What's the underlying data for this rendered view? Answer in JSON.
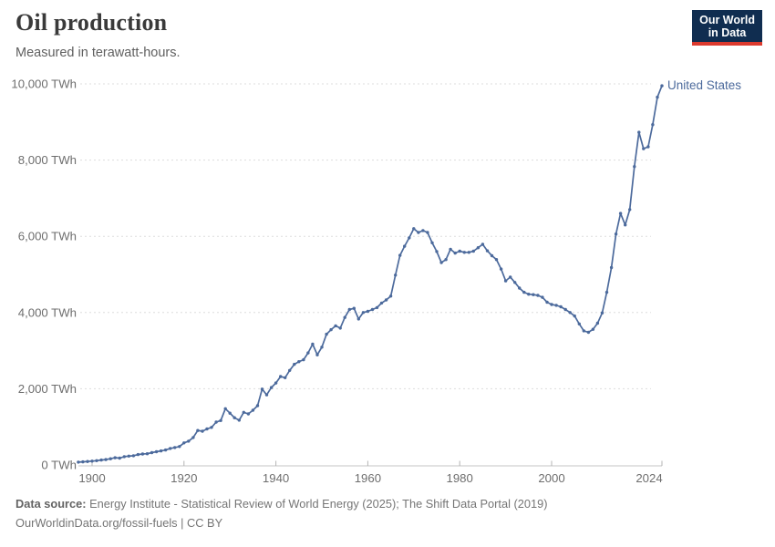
{
  "header": {
    "title": "Oil production",
    "subtitle": "Measured in terawatt-hours."
  },
  "logo": {
    "line1": "Our World",
    "line2": "in Data"
  },
  "colors": {
    "line": "#4c6a9c",
    "logo_bg": "#102d50",
    "logo_red": "#dc3a2e",
    "grid": "#dddddd",
    "axis": "#c4c4c4",
    "axis_text": "#6e6e6e"
  },
  "axis": {
    "y_tick_labels": [
      "10,000 TWh",
      "8,000 TWh",
      "6,000 TWh",
      "4,000 TWh",
      "2,000 TWh",
      "0 TWh"
    ],
    "x_tick_labels": [
      "1900",
      "1920",
      "1940",
      "1960",
      "1980",
      "2000",
      "2024"
    ]
  },
  "entity_label": "United States",
  "footer": {
    "source_label": "Data source:",
    "source_text": " Energy Institute - Statistical Review of World Energy (2025); The Shift Data Portal (2019)",
    "credit": "OurWorldinData.org/fossil-fuels | CC BY"
  },
  "chart_data": {
    "type": "line",
    "title": "Oil production",
    "subtitle": "Measured in terawatt-hours.",
    "xlabel": "",
    "ylabel": "TWh",
    "x_range": [
      1897,
      2024
    ],
    "ylim": [
      0,
      10000
    ],
    "grid": "dashed-horizontal",
    "legend_position": "end-of-line-label",
    "years": [
      1897,
      1898,
      1899,
      1900,
      1901,
      1902,
      1903,
      1904,
      1905,
      1906,
      1907,
      1908,
      1909,
      1910,
      1911,
      1912,
      1913,
      1914,
      1915,
      1916,
      1917,
      1918,
      1919,
      1920,
      1921,
      1922,
      1923,
      1924,
      1925,
      1926,
      1927,
      1928,
      1929,
      1930,
      1931,
      1932,
      1933,
      1934,
      1935,
      1936,
      1937,
      1938,
      1939,
      1940,
      1941,
      1942,
      1943,
      1944,
      1945,
      1946,
      1947,
      1948,
      1949,
      1950,
      1951,
      1952,
      1953,
      1954,
      1955,
      1956,
      1957,
      1958,
      1959,
      1960,
      1961,
      1962,
      1963,
      1964,
      1965,
      1966,
      1967,
      1968,
      1969,
      1970,
      1971,
      1972,
      1973,
      1974,
      1975,
      1976,
      1977,
      1978,
      1979,
      1980,
      1981,
      1982,
      1983,
      1984,
      1985,
      1986,
      1987,
      1988,
      1989,
      1990,
      1991,
      1992,
      1993,
      1994,
      1995,
      1996,
      1997,
      1998,
      1999,
      2000,
      2001,
      2002,
      2003,
      2004,
      2005,
      2006,
      2007,
      2008,
      2009,
      2010,
      2011,
      2012,
      2013,
      2014,
      2015,
      2016,
      2017,
      2018,
      2019,
      2020,
      2021,
      2022,
      2023,
      2024
    ],
    "series": [
      {
        "name": "United States",
        "unit": "TWh",
        "values": [
          75,
          82,
          90,
          100,
          112,
          130,
          142,
          162,
          188,
          180,
          218,
          232,
          242,
          272,
          288,
          295,
          322,
          348,
          368,
          392,
          432,
          458,
          483,
          580,
          625,
          720,
          905,
          885,
          945,
          985,
          1125,
          1165,
          1475,
          1360,
          1240,
          1175,
          1380,
          1340,
          1435,
          1555,
          1990,
          1840,
          2030,
          2150,
          2320,
          2290,
          2480,
          2640,
          2710,
          2760,
          2940,
          3170,
          2890,
          3090,
          3430,
          3550,
          3650,
          3590,
          3870,
          4080,
          4110,
          3830,
          4000,
          4030,
          4080,
          4130,
          4250,
          4330,
          4430,
          4980,
          5500,
          5740,
          5960,
          6200,
          6100,
          6150,
          6100,
          5830,
          5600,
          5310,
          5390,
          5660,
          5560,
          5610,
          5580,
          5580,
          5610,
          5700,
          5790,
          5620,
          5490,
          5390,
          5140,
          4830,
          4930,
          4790,
          4640,
          4530,
          4480,
          4470,
          4450,
          4400,
          4270,
          4210,
          4190,
          4150,
          4080,
          4000,
          3910,
          3700,
          3520,
          3480,
          3560,
          3720,
          3990,
          4530,
          5180,
          6060,
          6600,
          6300,
          6700,
          7830,
          8730,
          8300,
          8350,
          8930,
          9650,
          9950
        ]
      }
    ]
  }
}
